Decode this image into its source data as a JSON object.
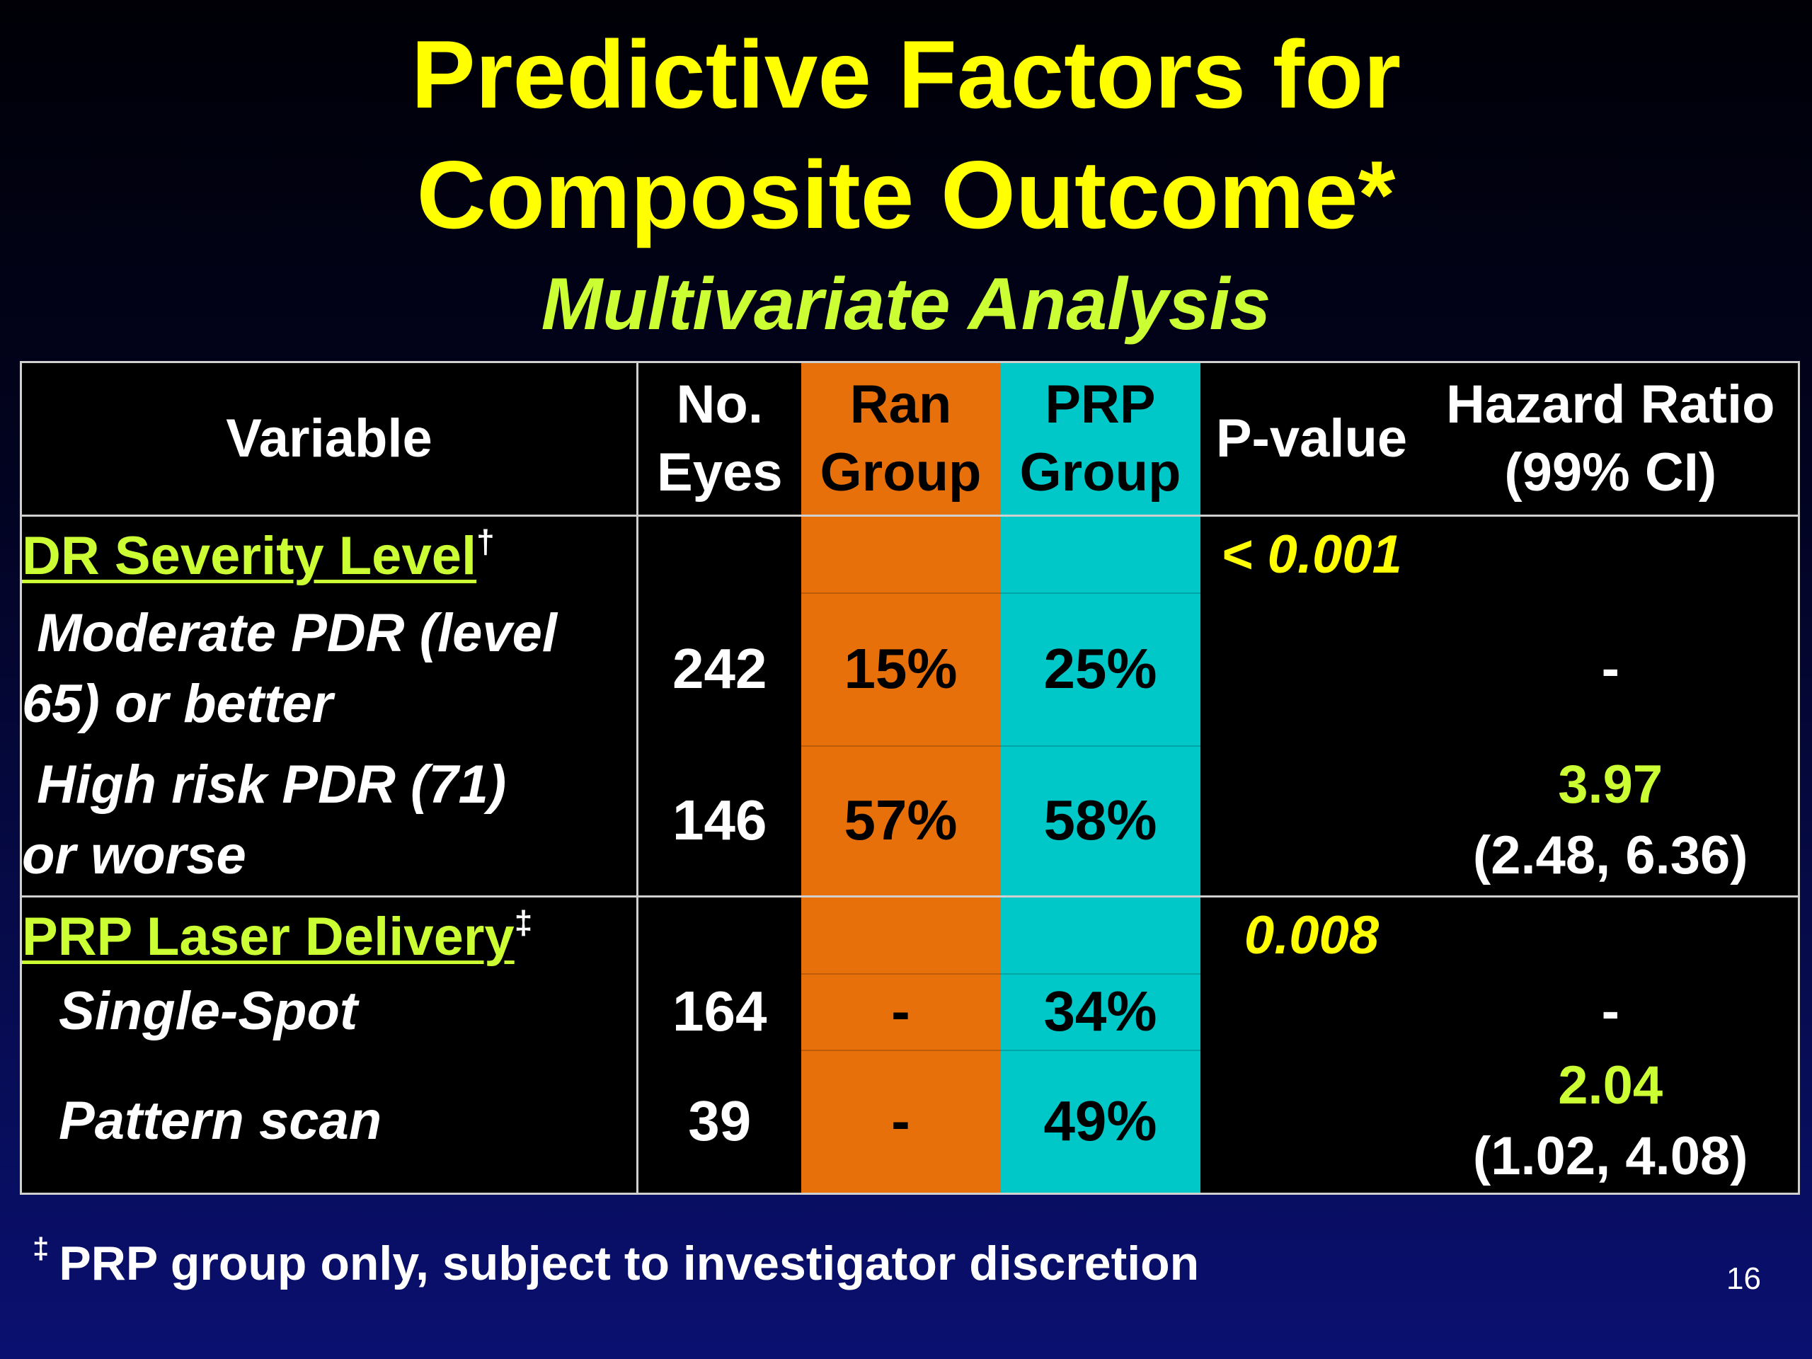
{
  "title_line1": "Predictive Factors for",
  "title_line2": "Composite Outcome*",
  "subtitle": "Multivariate Analysis",
  "table": {
    "headers": {
      "variable": "Variable",
      "no_eyes_1": "No.",
      "no_eyes_2": "Eyes",
      "ran_1": "Ran",
      "ran_2": "Group",
      "prp_1": "PRP",
      "prp_2": "Group",
      "pvalue": "P-value",
      "hr_1": "Hazard Ratio",
      "hr_2": "(99% CI)"
    },
    "groups": [
      {
        "label": "DR Severity Level",
        "mark": "†",
        "pvalue": "< 0.001",
        "rows": [
          {
            "line1": " Moderate PDR (level",
            "line2": "65) or better",
            "eyes": "242",
            "ran": "15%",
            "prp": "25%",
            "hr": "-",
            "ci": ""
          },
          {
            "line1": " High risk PDR (71)",
            "line2": "or worse",
            "eyes": "146",
            "ran": "57%",
            "prp": "58%",
            "hr": "3.97",
            "ci": "(2.48, 6.36)"
          }
        ]
      },
      {
        "label": "PRP Laser Delivery",
        "mark": "‡",
        "pvalue": "0.008",
        "rows": [
          {
            "line1": "Single-Spot",
            "eyes": "164",
            "ran": "-",
            "prp": "34%",
            "hr": "-",
            "ci": ""
          },
          {
            "line1": "Pattern scan",
            "eyes": "39",
            "ran": "-",
            "prp": "49%",
            "hr": "2.04",
            "ci": "(1.02, 4.08)"
          }
        ]
      }
    ]
  },
  "footnote": {
    "mark": "‡",
    "text": "PRP group only, subject to investigator discretion"
  },
  "page_number": "16",
  "colors": {
    "title": "#ffff00",
    "accent": "#ccff33",
    "ran_column": "#e8700a",
    "prp_column": "#00c8c8"
  }
}
